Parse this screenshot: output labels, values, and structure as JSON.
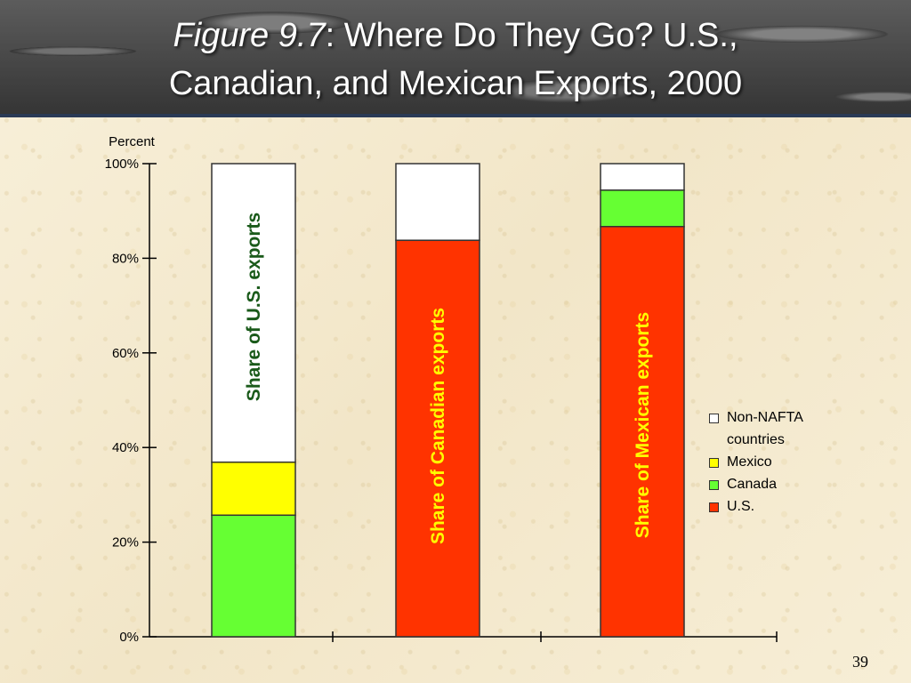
{
  "title": {
    "figure_label": "Figure 9.7",
    "line1_rest": ": Where Do They Go? U.S.,",
    "line2": "Canadian, and Mexican Exports, 2000"
  },
  "page_number": "39",
  "colors": {
    "us": "#ff3300",
    "canada": "#66ff33",
    "mexico": "#ffff00",
    "non_nafta": "#ffffff",
    "bar_label_green": "#1a5a1a",
    "bar_label_yellow": "#ffff00"
  },
  "legend": [
    {
      "label": "Non-NAFTA countries",
      "color": "#ffffff"
    },
    {
      "label": "Mexico",
      "color": "#ffff00"
    },
    {
      "label": "Canada",
      "color": "#66ff33"
    },
    {
      "label": "U.S.",
      "color": "#ff3300"
    }
  ],
  "chart_data": {
    "type": "bar",
    "stacked": true,
    "ylabel": "Percent",
    "ylim": [
      0,
      100
    ],
    "yticks": [
      0,
      20,
      40,
      60,
      80,
      100
    ],
    "ytick_labels": [
      "0%",
      "20%",
      "40%",
      "60%",
      "80%",
      "100%"
    ],
    "grid": false,
    "legend_position": "right",
    "categories": [
      "Share of U.S. exports",
      "Share of Canadian exports",
      "Share of Mexican exports"
    ],
    "category_label_colors": [
      "#1a5a1a",
      "#ffff00",
      "#ffff00"
    ],
    "series": [
      {
        "name": "U.S.",
        "color": "#ff3300",
        "values": [
          0,
          83.8,
          86.7
        ]
      },
      {
        "name": "Canada",
        "color": "#66ff33",
        "values": [
          25.7,
          0,
          7.7
        ]
      },
      {
        "name": "Mexico",
        "color": "#ffff00",
        "values": [
          11.2,
          0,
          0
        ]
      },
      {
        "name": "Non-NAFTA countries",
        "color": "#ffffff",
        "values": [
          63.1,
          16.2,
          5.6
        ]
      }
    ]
  }
}
